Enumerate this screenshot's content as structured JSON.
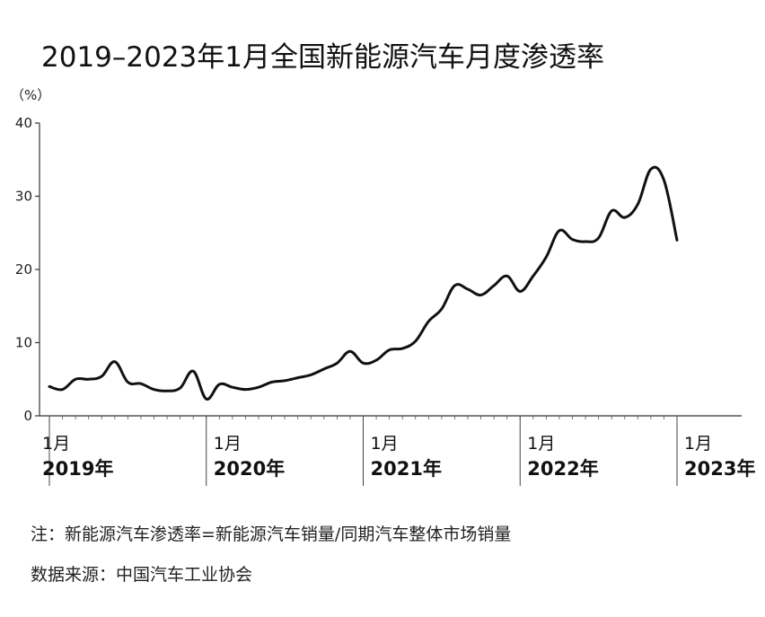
{
  "title": "2019–2023年1月全国新能源汽车月度渗透率",
  "unit_label": "（%）",
  "note": "注：新能源汽车渗透率=新能源汽车销量/同期汽车整体市场销量",
  "source": "数据来源：中国汽车工业协会",
  "chart_data": {
    "type": "line",
    "title": "2019–2023年1月全国新能源汽车月度渗透率",
    "ylabel": "（%）",
    "xlabel": "",
    "ylim": [
      0,
      40
    ],
    "yticks": [
      0,
      10,
      20,
      30,
      40
    ],
    "grid": false,
    "xticks": [
      {
        "month": "1月",
        "year": "2019年"
      },
      {
        "month": "1月",
        "year": "2020年"
      },
      {
        "month": "1月",
        "year": "2021年"
      },
      {
        "month": "1月",
        "year": "2022年"
      },
      {
        "month": "1月",
        "year": "2023年"
      }
    ],
    "x": [
      "2019-01",
      "2019-02",
      "2019-03",
      "2019-04",
      "2019-05",
      "2019-06",
      "2019-07",
      "2019-08",
      "2019-09",
      "2019-10",
      "2019-11",
      "2019-12",
      "2020-01",
      "2020-02",
      "2020-03",
      "2020-04",
      "2020-05",
      "2020-06",
      "2020-07",
      "2020-08",
      "2020-09",
      "2020-10",
      "2020-11",
      "2020-12",
      "2021-01",
      "2021-02",
      "2021-03",
      "2021-04",
      "2021-05",
      "2021-06",
      "2021-07",
      "2021-08",
      "2021-09",
      "2021-10",
      "2021-11",
      "2021-12",
      "2022-01",
      "2022-02",
      "2022-03",
      "2022-04",
      "2022-05",
      "2022-06",
      "2022-07",
      "2022-08",
      "2022-09",
      "2022-10",
      "2022-11",
      "2022-12",
      "2023-01"
    ],
    "series": [
      {
        "color": "#111111",
        "values": [
          4.0,
          3.6,
          5.0,
          5.0,
          5.4,
          7.4,
          4.6,
          4.4,
          3.6,
          3.4,
          3.8,
          6.1,
          2.3,
          4.3,
          3.9,
          3.6,
          3.9,
          4.6,
          4.8,
          5.2,
          5.6,
          6.4,
          7.2,
          8.8,
          7.2,
          7.6,
          9.0,
          9.2,
          10.2,
          12.9,
          14.6,
          17.8,
          17.3,
          16.5,
          17.8,
          19.1,
          17.0,
          19.1,
          21.7,
          25.3,
          24.1,
          23.8,
          24.3,
          28.0,
          27.1,
          28.9,
          33.7,
          32.2,
          24.0
        ]
      }
    ]
  }
}
